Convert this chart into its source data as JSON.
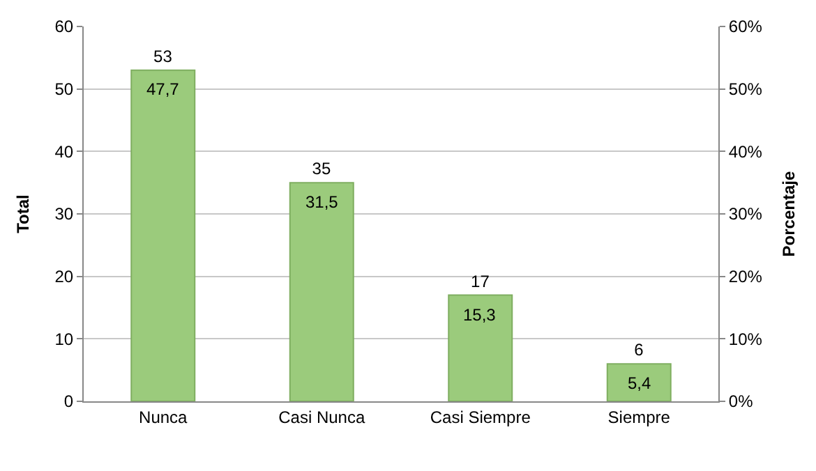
{
  "chart_data": {
    "type": "bar",
    "ylabel": "Total",
    "y2label": "Porcentaje",
    "categories": [
      "Nunca",
      "Casi Nunca",
      "Casi Siempre",
      "Siempre"
    ],
    "series": [
      {
        "color": "#9bcb7c",
        "values": [
          53,
          35,
          17,
          6
        ],
        "value_labels": [
          "53",
          "35",
          "17",
          "6"
        ]
      }
    ],
    "annotations": [
      "47,7",
      "31,5",
      "15,3",
      "5,4"
    ],
    "ylim": [
      0,
      60
    ],
    "yticks": [
      0,
      10,
      20,
      30,
      40,
      50,
      60
    ],
    "y2lim": [
      0,
      60
    ],
    "y2ticks": [
      {
        "value": 0,
        "label": "0%"
      },
      {
        "value": 10,
        "label": "10%"
      },
      {
        "value": 20,
        "label": "20%"
      },
      {
        "value": 30,
        "label": "30%"
      },
      {
        "value": 40,
        "label": "40%"
      },
      {
        "value": 50,
        "label": "50%"
      },
      {
        "value": 60,
        "label": "60%"
      }
    ],
    "grid": "y",
    "legend": false
  }
}
